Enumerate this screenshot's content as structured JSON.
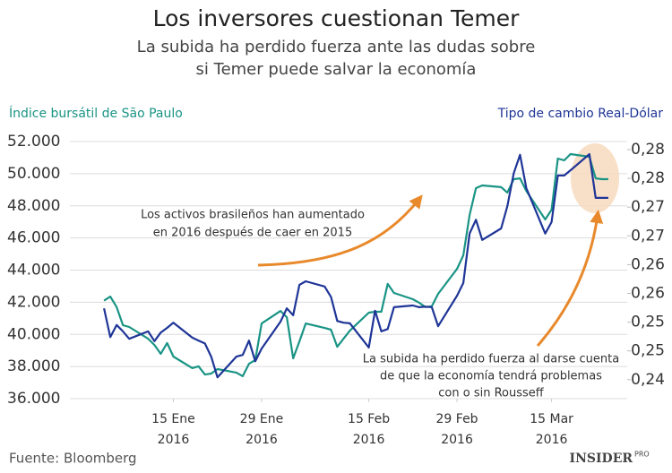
{
  "chart_data": {
    "type": "line",
    "title": "Los inversores cuestionan Temer",
    "subtitle": [
      "La subida ha perdido fuerza ante las dudas sobre",
      "si Temer puede salvar la economía"
    ],
    "ylabel": "Índice bursátil de São Paulo",
    "y2label": "Tipo de cambio Real-Dólar",
    "source": "Fuente: Bloomberg",
    "logo": "INSIDER",
    "logo_suffix": "PRO",
    "annotations": [
      {
        "lines": [
          "Los activos brasileños han aumentado",
          "en 2016 después de caer en 2015"
        ]
      },
      {
        "lines": [
          "La subida ha perdido fuerza al darse cuenta",
          "de que la economía tendrá problemas",
          "con o sin Rousseff"
        ]
      }
    ],
    "x": [
      "2016-01-04",
      "2016-01-05",
      "2016-01-06",
      "2016-01-07",
      "2016-01-08",
      "2016-01-11",
      "2016-01-12",
      "2016-01-13",
      "2016-01-14",
      "2016-01-15",
      "2016-01-18",
      "2016-01-19",
      "2016-01-20",
      "2016-01-21",
      "2016-01-22",
      "2016-01-25",
      "2016-01-26",
      "2016-01-27",
      "2016-01-28",
      "2016-01-29",
      "2016-02-01",
      "2016-02-02",
      "2016-02-03",
      "2016-02-04",
      "2016-02-05",
      "2016-02-08",
      "2016-02-09",
      "2016-02-10",
      "2016-02-11",
      "2016-02-12",
      "2016-02-15",
      "2016-02-16",
      "2016-02-17",
      "2016-02-18",
      "2016-02-19",
      "2016-02-22",
      "2016-02-23",
      "2016-02-24",
      "2016-02-25",
      "2016-02-26",
      "2016-02-29",
      "2016-03-01",
      "2016-03-02",
      "2016-03-03",
      "2016-03-04",
      "2016-03-07",
      "2016-03-08",
      "2016-03-09",
      "2016-03-10",
      "2016-03-11",
      "2016-03-14",
      "2016-03-15",
      "2016-03-16",
      "2016-03-17",
      "2016-03-18",
      "2016-03-21",
      "2016-03-22",
      "2016-03-23",
      "2016-03-24"
    ],
    "xlim": [
      "2016-01-01",
      "2016-03-27"
    ],
    "xticks": [
      {
        "value": "2016-01-15",
        "label": "15 Ene",
        "year": "2016"
      },
      {
        "value": "2016-01-29",
        "label": "29 Ene",
        "year": "2016"
      },
      {
        "value": "2016-02-15",
        "label": "15 Feb",
        "year": "2016"
      },
      {
        "value": "2016-02-29",
        "label": "29 Feb",
        "year": "2016"
      },
      {
        "value": "2016-03-15",
        "label": "15 Mar",
        "year": "2016"
      }
    ],
    "ylim": [
      36000,
      52000
    ],
    "yticks": [
      {
        "value": 36000,
        "label": "36.000"
      },
      {
        "value": 38000,
        "label": "38.000"
      },
      {
        "value": 40000,
        "label": "40.000"
      },
      {
        "value": 42000,
        "label": "42.000"
      },
      {
        "value": 44000,
        "label": "44.000"
      },
      {
        "value": 46000,
        "label": "46.000"
      },
      {
        "value": 48000,
        "label": "48.000"
      },
      {
        "value": 50000,
        "label": "50.000"
      },
      {
        "value": 52000,
        "label": "52.000"
      }
    ],
    "y2lim": [
      0.2367,
      0.2814
    ],
    "y2ticks": [
      {
        "value": 0.24,
        "label": "0,24"
      },
      {
        "value": 0.245,
        "label": "0,25"
      },
      {
        "value": 0.25,
        "label": "0,25"
      },
      {
        "value": 0.255,
        "label": "0,26"
      },
      {
        "value": 0.26,
        "label": "0,26"
      },
      {
        "value": 0.265,
        "label": "0,27"
      },
      {
        "value": 0.27,
        "label": "0,27"
      },
      {
        "value": 0.275,
        "label": "0,28"
      },
      {
        "value": 0.28,
        "label": "0,28"
      }
    ],
    "grid": true,
    "series": [
      {
        "name": "Índice bursátil de São Paulo",
        "color": "#1a9485",
        "values": [
          42100,
          42350,
          41700,
          40570,
          40460,
          39730,
          39340,
          38790,
          39460,
          38620,
          37900,
          38010,
          37500,
          37560,
          37840,
          37620,
          37400,
          38170,
          38400,
          40680,
          41460,
          41070,
          38510,
          39560,
          40680,
          40400,
          40290,
          39230,
          39730,
          40230,
          41350,
          41410,
          41410,
          43140,
          42580,
          42190,
          41970,
          41700,
          41750,
          42520,
          44080,
          44920,
          47430,
          49100,
          49270,
          49160,
          48820,
          49660,
          49710,
          48930,
          47150,
          47760,
          50940,
          50830,
          51220,
          51050,
          49710,
          49660,
          49660
        ]
      },
      {
        "name": "Tipo de cambio Real-Dólar",
        "color": "#1f3597",
        "axis": "y2",
        "values": [
          0.2524,
          0.2474,
          0.2495,
          0.2484,
          0.2471,
          0.2484,
          0.2467,
          0.2482,
          0.249,
          0.2499,
          0.2473,
          0.2468,
          0.2463,
          0.244,
          0.2404,
          0.244,
          0.2443,
          0.2468,
          0.2432,
          0.2454,
          0.2501,
          0.2524,
          0.2512,
          0.2565,
          0.2571,
          0.2562,
          0.2544,
          0.2502,
          0.2499,
          0.2498,
          0.2456,
          0.252,
          0.2484,
          0.2488,
          0.2526,
          0.2529,
          0.2526,
          0.2527,
          0.2526,
          0.2493,
          0.2546,
          0.2568,
          0.2654,
          0.2678,
          0.2643,
          0.2663,
          0.2702,
          0.2759,
          0.2791,
          0.2733,
          0.2654,
          0.2674,
          0.2755,
          0.2755,
          0.2764,
          0.2792,
          0.2716,
          0.2716,
          0.2716
        ]
      }
    ]
  }
}
